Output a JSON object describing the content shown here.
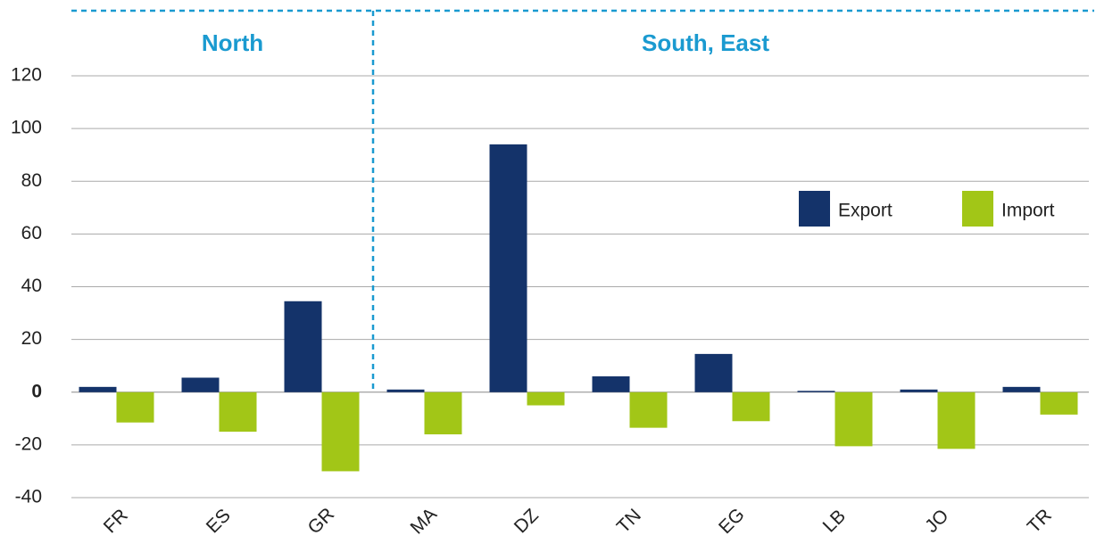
{
  "chart_data": {
    "type": "bar",
    "groups": [
      {
        "name": "North",
        "categories": [
          "FR",
          "ES",
          "GR"
        ]
      },
      {
        "name": "South, East",
        "categories": [
          "MA",
          "DZ",
          "TN",
          "EG",
          "LB",
          "JO",
          "TR"
        ]
      }
    ],
    "categories": [
      "FR",
      "ES",
      "GR",
      "MA",
      "DZ",
      "TN",
      "EG",
      "LB",
      "JO",
      "TR"
    ],
    "series": [
      {
        "name": "Export",
        "color": "#14336a",
        "values": [
          2,
          5.5,
          34.5,
          1,
          94,
          6,
          14.5,
          0.5,
          1,
          2
        ]
      },
      {
        "name": "Import",
        "color": "#a2c617",
        "values": [
          -11.5,
          -15,
          -30,
          -16,
          -5,
          -13.5,
          -11,
          -20.5,
          -21.5,
          -8.5
        ]
      }
    ],
    "ylim": [
      -40,
      120
    ],
    "yticks": [
      -40,
      -20,
      0,
      20,
      40,
      60,
      80,
      100,
      120
    ],
    "grid": true,
    "legend": "right"
  }
}
